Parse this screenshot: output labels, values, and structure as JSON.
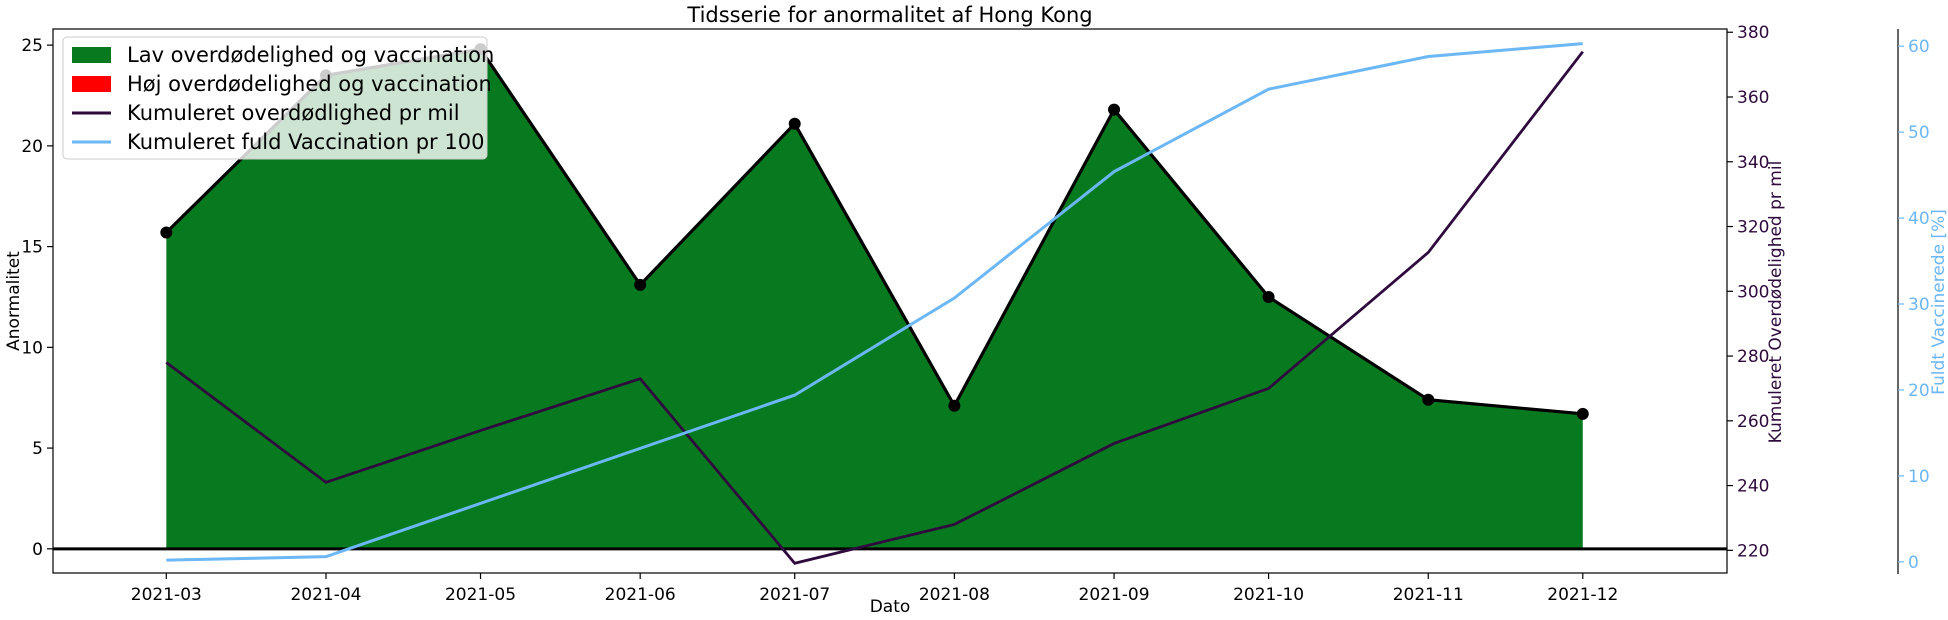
{
  "chart_data": {
    "type": "area",
    "title": "Tidsserie for anormalitet af Hong Kong",
    "xlabel": "Dato",
    "ylabel": "Anormalitet",
    "y2label": "Kumuleret Overdødelighed pr mil",
    "y3label": "Fuldt Vaccinerede [%]",
    "x": [
      "2021-03",
      "2021-04",
      "2021-05",
      "2021-06",
      "2021-07",
      "2021-08",
      "2021-09",
      "2021-10",
      "2021-11",
      "2021-12"
    ],
    "x_dates": [
      "2021-02-28",
      "2021-03-31",
      "2021-04-30",
      "2021-05-31",
      "2021-06-30",
      "2021-07-31",
      "2021-08-31",
      "2021-09-30",
      "2021-10-31",
      "2021-11-30"
    ],
    "x_tick_labels": [
      "2021-03",
      "2021-04",
      "2021-05",
      "2021-06",
      "2021-07",
      "2021-08",
      "2021-09",
      "2021-10",
      "2021-11",
      "2021-12"
    ],
    "ylim": [
      -1.2,
      25.8
    ],
    "y_ticks": [
      0,
      5,
      10,
      15,
      20,
      25
    ],
    "y2lim": [
      213,
      381
    ],
    "y2_ticks": [
      220,
      240,
      260,
      280,
      300,
      320,
      340,
      360,
      380
    ],
    "y3lim": [
      -1.3,
      62
    ],
    "y3_ticks": [
      0,
      10,
      20,
      30,
      40,
      50,
      60
    ],
    "series": [
      {
        "name": "Anormalitet",
        "axis": "left",
        "values": [
          15.7,
          23.5,
          24.8,
          13.1,
          21.1,
          7.1,
          21.8,
          12.5,
          7.4,
          6.7
        ]
      },
      {
        "name": "Kumuleret overdødlighed pr mil",
        "axis": "right",
        "values": [
          278,
          241,
          257,
          273,
          216,
          228,
          253,
          270,
          312,
          374
        ]
      },
      {
        "name": "Kumuleret fuld Vaccination pr 100",
        "axis": "right2",
        "values": [
          0.2,
          0.6,
          6.8,
          13.2,
          19.4,
          30.7,
          45.4,
          55.0,
          58.8,
          60.3
        ]
      }
    ],
    "legend": {
      "placement": "top-left",
      "entries": [
        {
          "label": "Lav overdødelighed og vaccination",
          "color": "#077a20",
          "kind": "patch"
        },
        {
          "label": "Høj overdødelighed og vaccination",
          "color": "#ff0000",
          "kind": "patch"
        },
        {
          "label": "Kumuleret overdødlighed pr mil",
          "color": "#2e0a3d",
          "kind": "line"
        },
        {
          "label": "Kumuleret fuld Vaccination pr 100",
          "color": "#6cb7f5",
          "kind": "line"
        }
      ]
    },
    "colors": {
      "fill_low": "#077a20",
      "anomaly_line": "#000000",
      "mortality": "#2e0a3d",
      "vaccination": "#6cb7f5"
    }
  }
}
